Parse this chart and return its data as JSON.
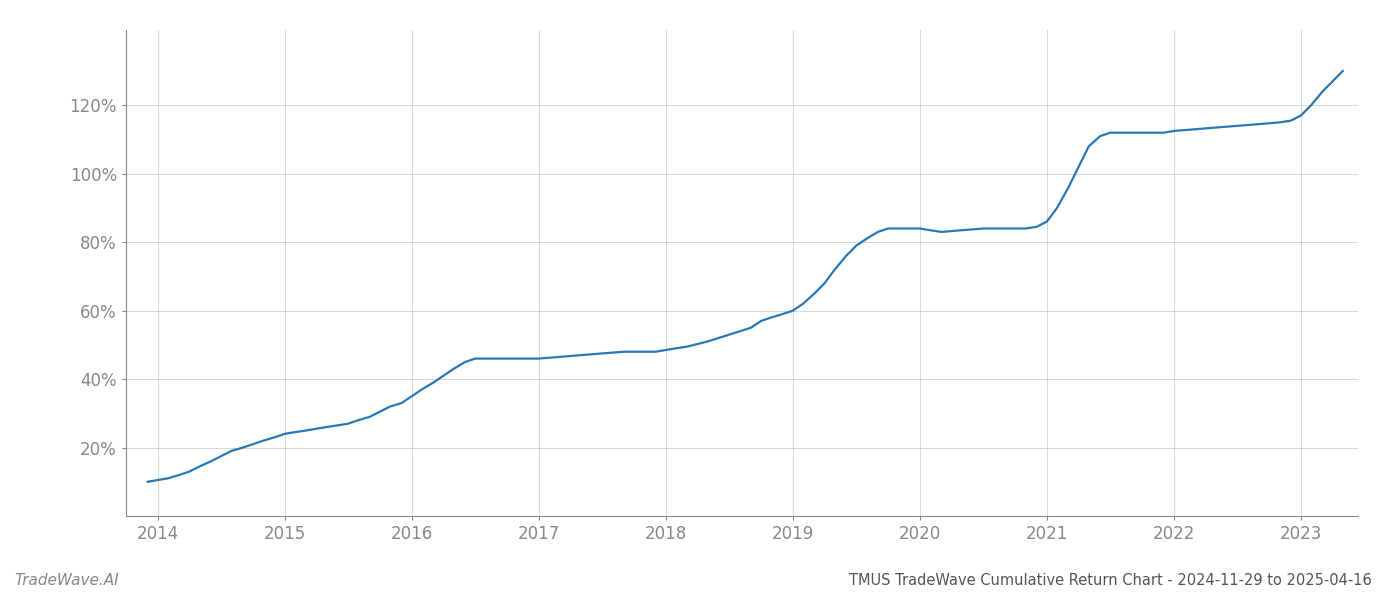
{
  "title": "TMUS TradeWave Cumulative Return Chart - 2024-11-29 to 2025-04-16",
  "watermark": "TradeWave.AI",
  "line_color": "#2878b5",
  "background_color": "#ffffff",
  "grid_color": "#cccccc",
  "x_years": [
    2013.92,
    2014.0,
    2014.08,
    2014.17,
    2014.25,
    2014.33,
    2014.42,
    2014.5,
    2014.58,
    2014.67,
    2014.75,
    2014.83,
    2014.92,
    2015.0,
    2015.08,
    2015.17,
    2015.25,
    2015.33,
    2015.42,
    2015.5,
    2015.58,
    2015.67,
    2015.75,
    2015.83,
    2015.92,
    2016.0,
    2016.08,
    2016.17,
    2016.25,
    2016.33,
    2016.42,
    2016.5,
    2016.58,
    2016.67,
    2016.75,
    2016.83,
    2016.92,
    2017.0,
    2017.17,
    2017.33,
    2017.5,
    2017.67,
    2017.83,
    2017.92,
    2018.0,
    2018.08,
    2018.17,
    2018.33,
    2018.5,
    2018.67,
    2018.75,
    2018.83,
    2018.92,
    2019.0,
    2019.08,
    2019.17,
    2019.25,
    2019.33,
    2019.42,
    2019.5,
    2019.58,
    2019.67,
    2019.75,
    2019.83,
    2019.92,
    2020.0,
    2020.08,
    2020.17,
    2020.33,
    2020.5,
    2020.67,
    2020.75,
    2020.83,
    2020.92,
    2021.0,
    2021.08,
    2021.17,
    2021.25,
    2021.33,
    2021.42,
    2021.5,
    2021.58,
    2021.67,
    2021.75,
    2021.83,
    2021.92,
    2022.0,
    2022.17,
    2022.33,
    2022.5,
    2022.67,
    2022.83,
    2022.92,
    2023.0,
    2023.08,
    2023.17,
    2023.25,
    2023.33
  ],
  "y_values": [
    10,
    10.5,
    11,
    12,
    13,
    14.5,
    16,
    17.5,
    19,
    20,
    21,
    22,
    23,
    24,
    24.5,
    25,
    25.5,
    26,
    26.5,
    27,
    28,
    29,
    30.5,
    32,
    33,
    35,
    37,
    39,
    41,
    43,
    45,
    46,
    46,
    46,
    46,
    46,
    46,
    46,
    46.5,
    47,
    47.5,
    48,
    48,
    48,
    48.5,
    49,
    49.5,
    51,
    53,
    55,
    57,
    58,
    59,
    60,
    62,
    65,
    68,
    72,
    76,
    79,
    81,
    83,
    84,
    84,
    84,
    84,
    83.5,
    83,
    83.5,
    84,
    84,
    84,
    84,
    84.5,
    86,
    90,
    96,
    102,
    108,
    111,
    112,
    112,
    112,
    112,
    112,
    112,
    112.5,
    113,
    113.5,
    114,
    114.5,
    115,
    115.5,
    117,
    120,
    124,
    127,
    130
  ],
  "x_tick_labels": [
    "2014",
    "2015",
    "2016",
    "2017",
    "2018",
    "2019",
    "2020",
    "2021",
    "2022",
    "2023"
  ],
  "x_tick_positions": [
    2014,
    2015,
    2016,
    2017,
    2018,
    2019,
    2020,
    2021,
    2022,
    2023
  ],
  "y_ticks": [
    20,
    40,
    60,
    80,
    100,
    120
  ],
  "y_tick_labels": [
    "20%",
    "40%",
    "60%",
    "80%",
    "100%",
    "120%"
  ],
  "xlim": [
    2013.75,
    2023.45
  ],
  "ylim": [
    0,
    142
  ],
  "line_width": 1.6,
  "title_fontsize": 10.5,
  "tick_fontsize": 12,
  "watermark_fontsize": 11,
  "tick_color": "#888888",
  "spine_color": "#888888",
  "title_color": "#555555",
  "watermark_color": "#888888"
}
